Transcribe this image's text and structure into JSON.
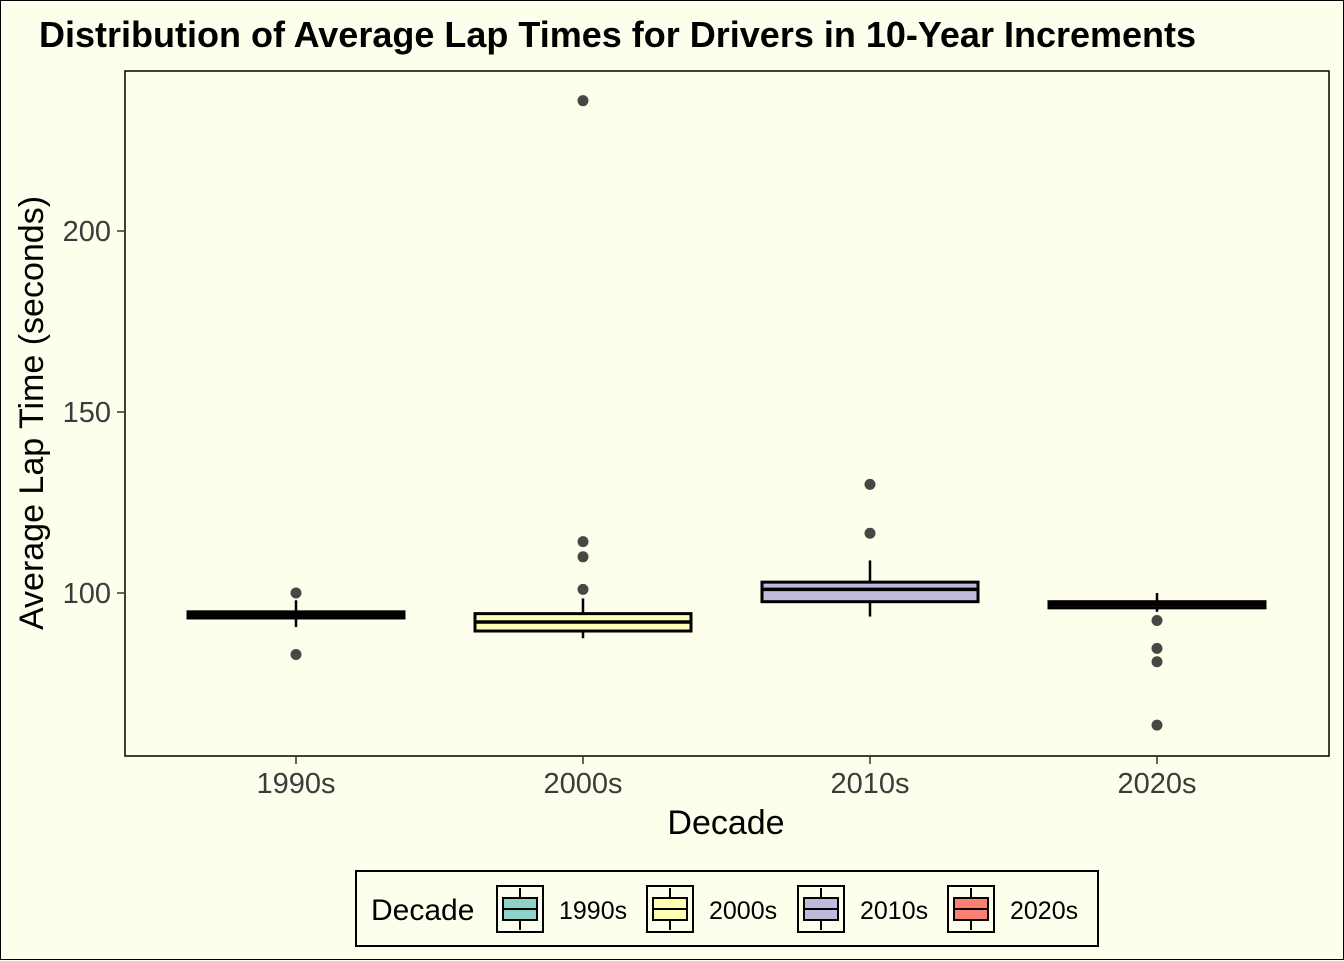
{
  "chart_data": {
    "type": "box",
    "title": "Distribution of Average Lap Times for Drivers in 10-Year Increments",
    "xlabel": "Decade",
    "ylabel": "Average Lap Time (seconds)",
    "categories": [
      "1990s",
      "2000s",
      "2010s",
      "2020s"
    ],
    "ylim": [
      58,
      243
    ],
    "yticks": [
      100,
      150,
      200
    ],
    "grid": false,
    "colors": [
      "#8dd3c7",
      "#ffffb3",
      "#bebada",
      "#fb8072"
    ],
    "boxes": [
      {
        "category": "1990s",
        "whisker_low": 90.6,
        "q1": 93.1,
        "median": 94.0,
        "q3": 94.8,
        "whisker_high": 98.0,
        "outliers": [
          100.0,
          83.0
        ]
      },
      {
        "category": "2000s",
        "whisker_low": 87.5,
        "q1": 89.5,
        "median": 92.0,
        "q3": 94.3,
        "whisker_high": 98.5,
        "outliers": [
          236.0,
          114.2,
          110.0,
          101.0
        ]
      },
      {
        "category": "2010s",
        "whisker_low": 93.5,
        "q1": 97.6,
        "median": 101.0,
        "q3": 103.0,
        "whisker_high": 109.0,
        "outliers": [
          130.0,
          116.5
        ]
      },
      {
        "category": "2020s",
        "whisker_low": 94.8,
        "q1": 95.9,
        "median": 96.8,
        "q3": 97.6,
        "whisker_high": 100.0,
        "outliers": [
          92.4,
          84.7,
          81.0,
          63.5
        ]
      }
    ],
    "legend": {
      "title": "Decade",
      "position": "bottom",
      "entries": [
        "1990s",
        "2000s",
        "2010s",
        "2020s"
      ]
    }
  }
}
